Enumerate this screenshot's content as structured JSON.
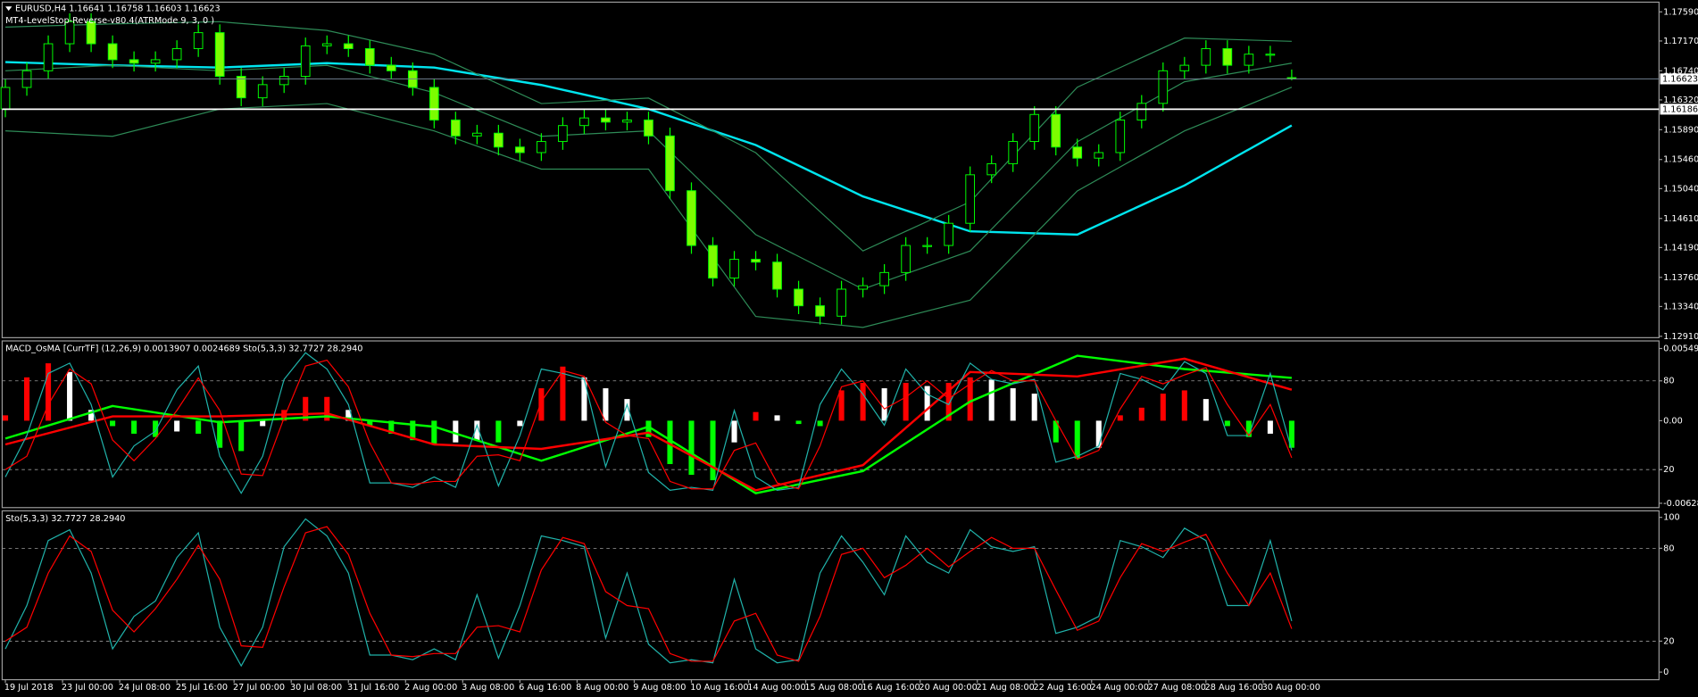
{
  "chart_data": [
    {
      "type": "candlestick",
      "title": "EURUSD,H4  1.16641 1.16758 1.16603 1.16623",
      "subtitle": "MT4-LevelStop-Reverse-v80.4(ATRMode 9, 3, 0 )",
      "x": [
        0,
        3,
        6,
        9,
        12,
        15,
        18,
        21,
        24,
        27,
        30,
        33,
        36,
        39,
        42,
        45,
        48,
        51,
        54,
        57,
        60,
        63,
        66,
        69,
        72,
        75,
        78,
        81,
        84,
        87,
        90,
        93,
        96,
        99,
        102,
        105,
        108,
        111,
        114,
        117,
        120,
        123,
        126,
        129,
        132,
        135,
        138,
        141,
        144,
        147,
        150,
        153,
        156,
        159,
        162,
        165,
        168,
        171,
        174,
        177,
        180
      ],
      "open": [
        1.1619,
        1.165,
        1.1674,
        1.1713,
        1.1745,
        1.1713,
        1.169,
        1.1685,
        1.169,
        1.1706,
        1.1729,
        1.1666,
        1.1635,
        1.1654,
        1.1666,
        1.171,
        1.1713,
        1.1706,
        1.1682,
        1.1674,
        1.165,
        1.1603,
        1.158,
        1.1584,
        1.1564,
        1.1556,
        1.1572,
        1.1595,
        1.1606,
        1.16,
        1.1603,
        1.158,
        1.1501,
        1.1422,
        1.1375,
        1.1402,
        1.1398,
        1.1359,
        1.1335,
        1.132,
        1.1359,
        1.1364,
        1.1383,
        1.1422,
        1.1422,
        1.1454,
        1.1524,
        1.154,
        1.1572,
        1.1611,
        1.1564,
        1.1548,
        1.1556,
        1.1603,
        1.1627,
        1.1674,
        1.1682,
        1.1706,
        1.1682,
        1.1698,
        1.16641
      ],
      "high": [
        1.1662,
        1.1686,
        1.1725,
        1.1757,
        1.1757,
        1.1725,
        1.1702,
        1.1702,
        1.1718,
        1.1741,
        1.1741,
        1.1678,
        1.1666,
        1.1678,
        1.1722,
        1.1725,
        1.1725,
        1.1718,
        1.1694,
        1.1686,
        1.1662,
        1.1615,
        1.1596,
        1.1596,
        1.1576,
        1.1584,
        1.1607,
        1.1618,
        1.1618,
        1.1615,
        1.1615,
        1.1592,
        1.1513,
        1.1434,
        1.1414,
        1.1414,
        1.141,
        1.1371,
        1.1347,
        1.1371,
        1.1376,
        1.1395,
        1.1434,
        1.1434,
        1.1466,
        1.1536,
        1.1552,
        1.1584,
        1.1623,
        1.1623,
        1.1576,
        1.1568,
        1.1615,
        1.1639,
        1.1686,
        1.1694,
        1.1718,
        1.1718,
        1.171,
        1.171,
        1.16758
      ],
      "low": [
        1.1607,
        1.1638,
        1.1662,
        1.1701,
        1.1701,
        1.1678,
        1.1673,
        1.1673,
        1.1678,
        1.1694,
        1.1654,
        1.1623,
        1.1623,
        1.1642,
        1.1654,
        1.1698,
        1.1694,
        1.167,
        1.1662,
        1.1638,
        1.1591,
        1.1568,
        1.1568,
        1.1552,
        1.1544,
        1.1544,
        1.156,
        1.1583,
        1.1588,
        1.1588,
        1.1568,
        1.1489,
        1.141,
        1.1363,
        1.1363,
        1.1386,
        1.1347,
        1.1323,
        1.1308,
        1.1308,
        1.1347,
        1.1352,
        1.1371,
        1.141,
        1.141,
        1.1442,
        1.1512,
        1.1528,
        1.156,
        1.1552,
        1.1536,
        1.1536,
        1.1544,
        1.1591,
        1.1615,
        1.1662,
        1.167,
        1.167,
        1.167,
        1.1686,
        1.16603
      ],
      "close": [
        1.165,
        1.1674,
        1.1713,
        1.1745,
        1.1713,
        1.169,
        1.1685,
        1.169,
        1.1706,
        1.1729,
        1.1666,
        1.1635,
        1.1654,
        1.1666,
        1.171,
        1.1713,
        1.1706,
        1.1682,
        1.1674,
        1.165,
        1.1603,
        1.158,
        1.1584,
        1.1564,
        1.1556,
        1.1572,
        1.1595,
        1.1606,
        1.16,
        1.1603,
        1.158,
        1.1501,
        1.1422,
        1.1375,
        1.1402,
        1.1398,
        1.1359,
        1.1335,
        1.132,
        1.1359,
        1.1364,
        1.1383,
        1.1422,
        1.1422,
        1.1454,
        1.1524,
        1.154,
        1.1572,
        1.1611,
        1.1564,
        1.1548,
        1.1556,
        1.1603,
        1.1627,
        1.1674,
        1.1682,
        1.1706,
        1.1682,
        1.1698,
        1.1698,
        1.16623
      ],
      "wick_color": "#00ff00",
      "up_color": "#000000",
      "down_color": "#7cfc00",
      "series": [
        {
          "color": "#00e5ee",
          "width": 2,
          "x": [
            0,
            15,
            30,
            45,
            60,
            75,
            90,
            105,
            120,
            135,
            150,
            165,
            180
          ],
          "values": [
            1.16866,
            1.16819,
            1.16787,
            1.1685,
            1.16787,
            1.16535,
            1.16188,
            1.15669,
            1.14928,
            1.14424,
            1.14377,
            1.15086,
            1.15952
          ]
        },
        {
          "color": "#2e8b57",
          "width": 1,
          "x": [
            0,
            15,
            30,
            45,
            60,
            75,
            90,
            105,
            120,
            135,
            150,
            165,
            180
          ],
          "values": [
            1.1737,
            1.17417,
            1.17448,
            1.17322,
            1.16976,
            1.16267,
            1.16346,
            1.15558,
            1.14141,
            1.1485,
            1.16503,
            1.17212,
            1.17165
          ]
        },
        {
          "color": "#2e8b57",
          "width": 1,
          "x": [
            0,
            15,
            30,
            45,
            60,
            75,
            90,
            105,
            120,
            135,
            150,
            165,
            180
          ],
          "values": [
            1.1674,
            1.16818,
            1.1674,
            1.16818,
            1.16425,
            1.15795,
            1.15873,
            1.14377,
            1.1359,
            1.14141,
            1.15716,
            1.16582,
            1.1685
          ]
        },
        {
          "color": "#2e8b57",
          "width": 1,
          "x": [
            0,
            15,
            30,
            45,
            60,
            75,
            90,
            105,
            120,
            135,
            150,
            165,
            180
          ],
          "values": [
            1.15873,
            1.15795,
            1.16188,
            1.16267,
            1.15873,
            1.15322,
            1.15322,
            1.13196,
            1.13038,
            1.13432,
            1.15007,
            1.15873,
            1.16503
          ]
        }
      ],
      "hlines": [
        {
          "value": 1.16623,
          "color": "#708090"
        },
        {
          "value": 1.16186,
          "color": "#ffffff"
        }
      ],
      "xlim": [
        -0.45,
        231.4
      ],
      "ylim": [
        1.1289,
        1.1773
      ],
      "yticks": [
        {
          "value": 1.1759,
          "label": "1.17590"
        },
        {
          "value": 1.1717,
          "label": "1.17170"
        },
        {
          "value": 1.1674,
          "label": "1.16740"
        },
        {
          "value": 1.1632,
          "label": "1.16320"
        },
        {
          "value": 1.1589,
          "label": "1.15890"
        },
        {
          "value": 1.1546,
          "label": "1.15460"
        },
        {
          "value": 1.1504,
          "label": "1.15040"
        },
        {
          "value": 1.1461,
          "label": "1.14610"
        },
        {
          "value": 1.1419,
          "label": "1.14190"
        },
        {
          "value": 1.1376,
          "label": "1.13760"
        },
        {
          "value": 1.1334,
          "label": "1.13340"
        },
        {
          "value": 1.1291,
          "label": "1.12910"
        }
      ]
    },
    {
      "type": "histogram",
      "title": "MACD_OsMA [CurrTF] (12,26,9) 0.0013907 0.0024689  Sto(5,3,3) 32.7727 28.2940",
      "x": [
        0,
        3,
        6,
        9,
        12,
        15,
        18,
        21,
        24,
        27,
        30,
        33,
        36,
        39,
        42,
        45,
        48,
        51,
        54,
        57,
        60,
        63,
        66,
        69,
        72,
        75,
        78,
        81,
        84,
        87,
        90,
        93,
        96,
        99,
        102,
        105,
        108,
        111,
        114,
        117,
        120,
        123,
        126,
        129,
        132,
        135,
        138,
        141,
        144,
        147,
        150,
        153,
        156,
        159,
        162,
        165,
        168,
        171,
        174,
        177,
        180
      ],
      "values": [
        0.00041,
        0.0033,
        0.00437,
        0.00371,
        0.00082,
        -0.00041,
        -0.00099,
        -0.00124,
        -0.00082,
        -0.00099,
        -0.00206,
        -0.00231,
        -0.00041,
        0.00082,
        0.00181,
        0.00181,
        0.00082,
        -0.00041,
        -0.00099,
        -0.00148,
        -0.00181,
        -0.00165,
        -0.00148,
        -0.00165,
        -0.00041,
        0.00247,
        0.00412,
        0.0033,
        0.00247,
        0.00165,
        -0.00124,
        -0.0033,
        -0.00412,
        -0.00453,
        -0.00165,
        0.00066,
        0.00041,
        -0.00025,
        -0.00041,
        0.00231,
        0.00288,
        0.00247,
        0.00288,
        0.00264,
        0.00288,
        0.0033,
        0.00313,
        0.00247,
        0.00206,
        -0.00165,
        -0.00288,
        -0.00206,
        0.00041,
        0.00099,
        0.00206,
        0.00231,
        0.00165,
        -0.00041,
        -0.00124,
        -0.00099,
        -0.00206
      ],
      "rise_color": "#ff0000",
      "fade_color": "#ffffff",
      "fall_color": "#00ff00",
      "series": [
        {
          "color": "#00ff00",
          "width": 2,
          "axis": "y2",
          "x": [
            0,
            15,
            30,
            45,
            60,
            75,
            90,
            105,
            120,
            135,
            150,
            165,
            180
          ],
          "values": [
            41,
            63,
            52,
            56,
            49,
            26,
            49,
            4,
            19,
            66,
            97,
            88,
            82
          ]
        },
        {
          "color": "#ff0000",
          "width": 2,
          "axis": "y2",
          "x": [
            0,
            15,
            30,
            45,
            60,
            75,
            90,
            105,
            120,
            135,
            150,
            165,
            180
          ],
          "values": [
            37,
            56,
            56,
            58,
            37,
            34,
            45,
            6,
            23,
            86,
            83,
            95,
            74
          ]
        }
      ],
      "xlim": [
        -0.45,
        231.4
      ],
      "ylim": [
        -0.006615,
        0.006074
      ],
      "yticks": [
        0.005497,
        {
          "value": 0,
          "label": "0.00"
        },
        -0.006285
      ],
      "y2lim": [
        -5.7,
        107
      ],
      "y2ticks": [
        80,
        20
      ],
      "grid": true
    },
    {
      "type": "line",
      "title": "Sto(5,3,3) 32.7727 28.2940",
      "x": [
        0,
        3,
        6,
        9,
        12,
        15,
        18,
        21,
        24,
        27,
        30,
        33,
        36,
        39,
        42,
        45,
        48,
        51,
        54,
        57,
        60,
        63,
        66,
        69,
        72,
        75,
        78,
        81,
        84,
        87,
        90,
        93,
        96,
        99,
        102,
        105,
        108,
        111,
        114,
        117,
        120,
        123,
        126,
        129,
        132,
        135,
        138,
        141,
        144,
        147,
        150,
        153,
        156,
        159,
        162,
        165,
        168,
        171,
        174,
        177,
        180
      ],
      "series": [
        {
          "color": "#20b2aa",
          "width": 1,
          "values": [
            15,
            43,
            85,
            92,
            64,
            15,
            36,
            46,
            74,
            90,
            29,
            4,
            29,
            81,
            99,
            88,
            64,
            11,
            11,
            8,
            15,
            8,
            50,
            9,
            43,
            88,
            85,
            81,
            22,
            64,
            18,
            6,
            8,
            6,
            60,
            15,
            6,
            8,
            64,
            88,
            71,
            50,
            88,
            71,
            64,
            92,
            81,
            78,
            81,
            25,
            29,
            36,
            85,
            81,
            74,
            93,
            85,
            43,
            43,
            85,
            33
          ]
        },
        {
          "color": "#ff0000",
          "width": 1,
          "values": [
            20,
            29,
            64,
            88,
            78,
            40,
            26,
            41,
            60,
            82,
            60,
            17,
            16,
            55,
            90,
            94,
            76,
            38,
            11,
            10,
            12,
            12,
            29,
            30,
            26,
            66,
            87,
            83,
            52,
            43,
            41,
            12,
            7,
            7,
            33,
            38,
            11,
            7,
            36,
            76,
            80,
            61,
            69,
            80,
            68,
            78,
            87,
            80,
            80,
            53,
            27,
            33,
            61,
            83,
            78,
            84,
            89,
            64,
            43,
            64,
            28
          ]
        }
      ],
      "xlim": [
        -0.45,
        231.4
      ],
      "ylim": [
        -4.9,
        104.2
      ],
      "yticks": [
        100,
        80,
        20,
        0
      ],
      "grid": true,
      "xticks": [
        {
          "value": 0,
          "label": "19 Jul 2018"
        },
        {
          "value": 8,
          "label": "23 Jul 00:00"
        },
        {
          "value": 16,
          "label": "24 Jul 08:00"
        },
        {
          "value": 24,
          "label": "25 Jul 16:00"
        },
        {
          "value": 32,
          "label": "27 Jul 00:00"
        },
        {
          "value": 40,
          "label": "30 Jul 08:00"
        },
        {
          "value": 48,
          "label": "31 Jul 16:00"
        },
        {
          "value": 56,
          "label": "2 Aug 00:00"
        },
        {
          "value": 64,
          "label": "3 Aug 08:00"
        },
        {
          "value": 72,
          "label": "6 Aug 16:00"
        },
        {
          "value": 80,
          "label": "8 Aug 00:00"
        },
        {
          "value": 88,
          "label": "9 Aug 08:00"
        },
        {
          "value": 96,
          "label": "10 Aug 16:00"
        },
        {
          "value": 104,
          "label": "14 Aug 00:00"
        },
        {
          "value": 112,
          "label": "15 Aug 08:00"
        },
        {
          "value": 120,
          "label": "16 Aug 16:00"
        },
        {
          "value": 128,
          "label": "20 Aug 00:00"
        },
        {
          "value": 136,
          "label": "21 Aug 08:00"
        },
        {
          "value": 144,
          "label": "22 Aug 16:00"
        },
        {
          "value": 152,
          "label": "24 Aug 00:00"
        },
        {
          "value": 160,
          "label": "27 Aug 08:00"
        },
        {
          "value": 168,
          "label": "28 Aug 16:00"
        },
        {
          "value": 176,
          "label": "30 Aug 00:00"
        }
      ]
    }
  ]
}
